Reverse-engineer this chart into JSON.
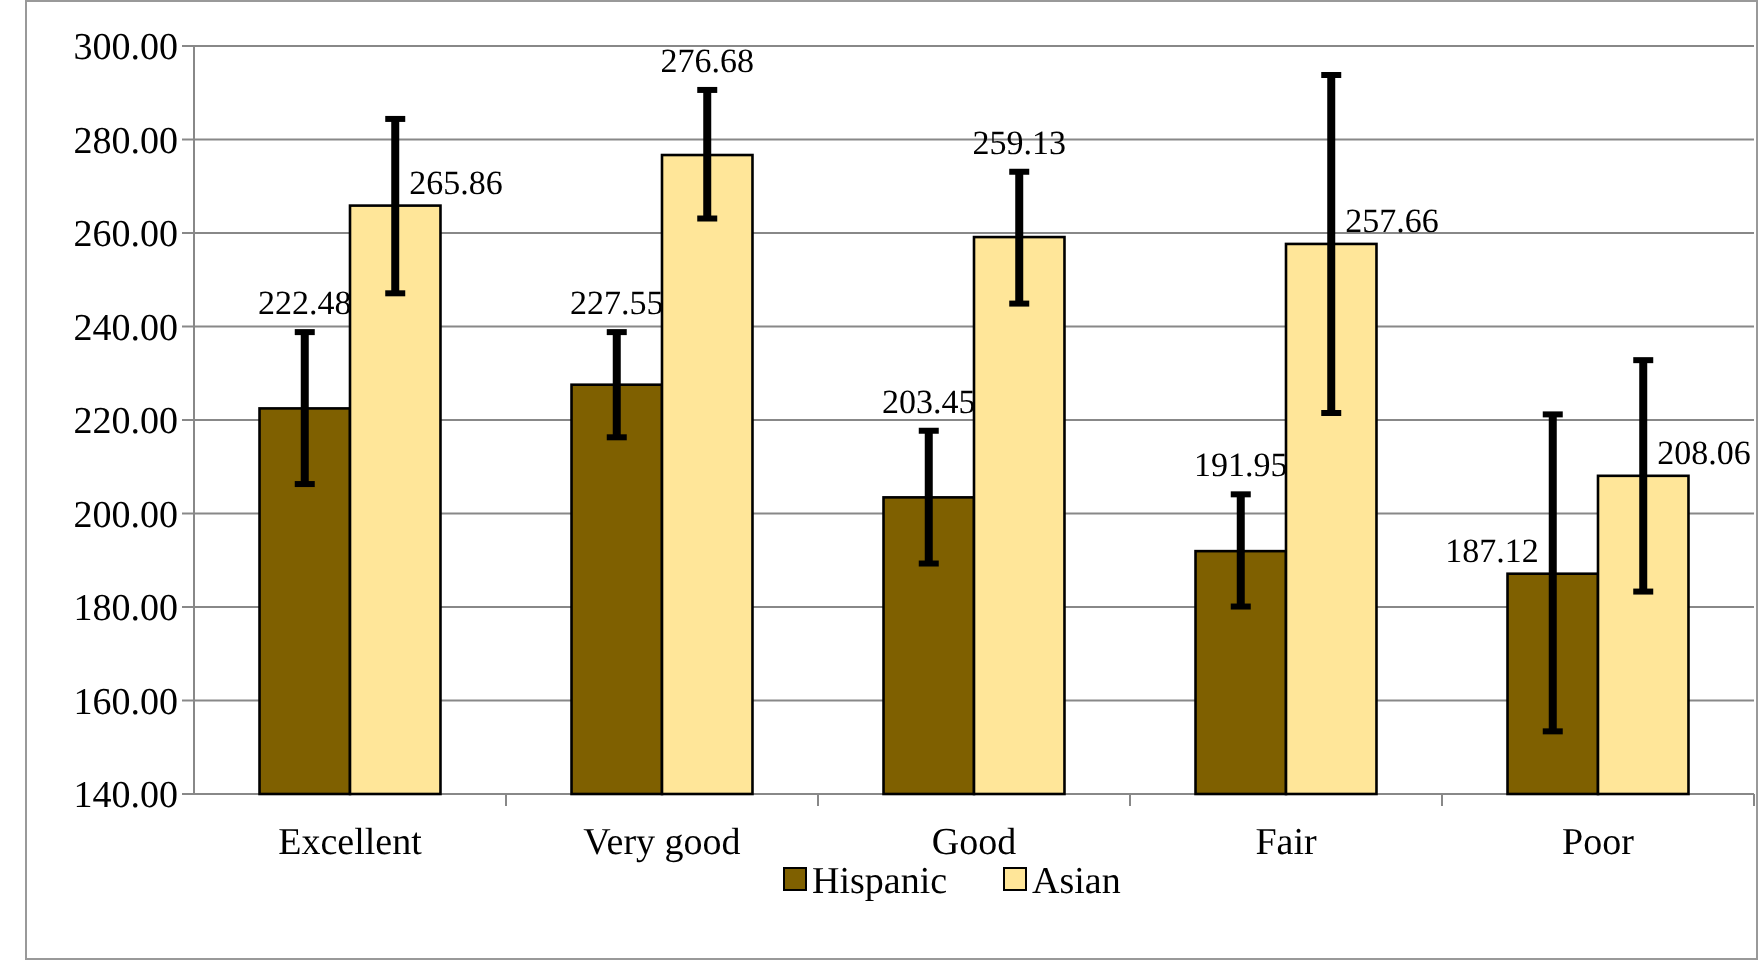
{
  "chart_data": {
    "type": "bar",
    "categories": [
      "Excellent",
      "Very good",
      "Good",
      "Fair",
      "Poor"
    ],
    "series": [
      {
        "name": "Hispanic",
        "color": "#7f6000",
        "values": [
          222.48,
          227.55,
          203.45,
          191.95,
          187.12
        ],
        "errors": [
          [
            206.3,
            238.8
          ],
          [
            216.3,
            238.8
          ],
          [
            189.3,
            217.7
          ],
          [
            180.1,
            204.1
          ],
          [
            153.4,
            221.2
          ]
        ]
      },
      {
        "name": "Asian",
        "color": "#ffe699",
        "values": [
          265.86,
          276.68,
          259.13,
          257.66,
          208.06
        ],
        "errors": [
          [
            247.1,
            284.4
          ],
          [
            263.1,
            290.6
          ],
          [
            244.9,
            273.1
          ],
          [
            221.5,
            293.8
          ],
          [
            183.3,
            232.8
          ]
        ]
      }
    ],
    "ylim": [
      140,
      300
    ],
    "yticks": [
      {
        "value": 140,
        "label": "140.00"
      },
      {
        "value": 160,
        "label": "160.00"
      },
      {
        "value": 180,
        "label": "180.00"
      },
      {
        "value": 200,
        "label": "200.00"
      },
      {
        "value": 220,
        "label": "220.00"
      },
      {
        "value": 240,
        "label": "240.00"
      },
      {
        "value": 260,
        "label": "260.00"
      },
      {
        "value": 280,
        "label": "280.00"
      },
      {
        "value": 300,
        "label": "300.00"
      }
    ],
    "grid": "y",
    "data_labels": true,
    "legend": "bottom"
  }
}
